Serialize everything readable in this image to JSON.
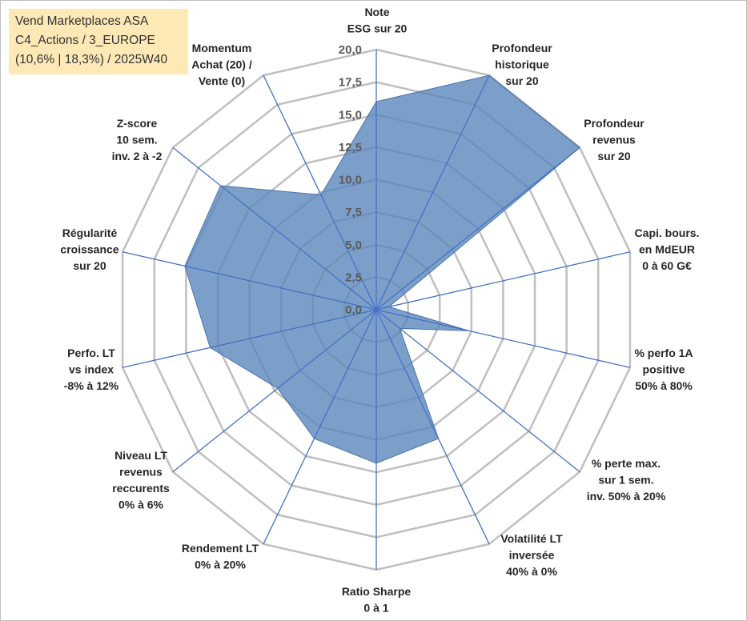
{
  "title": {
    "line1": "Vend Marketplaces ASA",
    "line2": "C4_Actions / 3_EUROPE",
    "line3": "(10,6% | 18,3%) / 2025W40"
  },
  "colors": {
    "grid": "#bfbfbf",
    "spoke": "#4472c4",
    "fill": "#5b87bd",
    "fill_opacity": "0.8",
    "stroke": "#4a72aa",
    "title_bg": "#fde9b6"
  },
  "chart_data": {
    "type": "radar",
    "rmax": 20,
    "ticks": [
      "0,0",
      "2,5",
      "5,0",
      "7,5",
      "10,0",
      "12,5",
      "15,0",
      "17,5",
      "20,0"
    ],
    "tick_values": [
      0,
      2.5,
      5,
      7.5,
      10,
      12.5,
      15,
      17.5,
      20
    ],
    "axes": [
      {
        "label": [
          "Note",
          "ESG sur 20"
        ],
        "value": 16.0
      },
      {
        "label": [
          "Profondeur",
          "historique",
          "sur 20"
        ],
        "value": 20.0
      },
      {
        "label": [
          "Profondeur",
          "revenus",
          "sur 20"
        ],
        "value": 20.0
      },
      {
        "label": [
          "Capi. bours.",
          "en MdEUR",
          "0 à 60 G€"
        ],
        "value": 1.0
      },
      {
        "label": [
          "% perfo 1A",
          "positive",
          "50% à 80%"
        ],
        "value": 7.3
      },
      {
        "label": [
          "% perte max.",
          "sur 1 sem.",
          "inv. 50% à 20%"
        ],
        "value": 2.3
      },
      {
        "label": [
          "Volatilité LT",
          "inversée",
          "40% à 0%"
        ],
        "value": 11.0
      },
      {
        "label": [
          "Ratio Sharpe",
          "0 à 1"
        ],
        "value": 11.8
      },
      {
        "label": [
          "Rendement LT",
          "0% à 20%"
        ],
        "value": 11.0
      },
      {
        "label": [
          "Niveau LT",
          "revenus",
          "reccurents",
          "0% à 6%"
        ],
        "value": 9.7
      },
      {
        "label": [
          "Perfo. LT",
          "vs index",
          "-8% à 12%"
        ],
        "value": 13.1
      },
      {
        "label": [
          "Régularité",
          "croissance",
          "sur 20"
        ],
        "value": 15.1
      },
      {
        "label": [
          "Z-score",
          "10 sem.",
          "inv. 2 à -2"
        ],
        "value": 15.3
      },
      {
        "label": [
          "Momentum",
          "Achat (20) /",
          "Vente (0)"
        ],
        "value": 9.8
      }
    ]
  }
}
